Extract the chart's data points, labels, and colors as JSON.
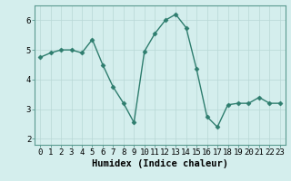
{
  "x": [
    0,
    1,
    2,
    3,
    4,
    5,
    6,
    7,
    8,
    9,
    10,
    11,
    12,
    13,
    14,
    15,
    16,
    17,
    18,
    19,
    20,
    21,
    22,
    23
  ],
  "y": [
    4.75,
    4.9,
    5.0,
    5.0,
    4.9,
    5.35,
    4.5,
    3.75,
    3.2,
    2.55,
    4.95,
    5.55,
    6.0,
    6.2,
    5.75,
    4.35,
    2.75,
    2.4,
    3.15,
    3.2,
    3.2,
    3.4,
    3.2,
    3.2
  ],
  "line_color": "#2e7d6e",
  "marker": "D",
  "marker_size": 2.5,
  "bg_color": "#d4eeed",
  "grid_color": "#b8d8d5",
  "xlabel": "Humidex (Indice chaleur)",
  "ylim": [
    1.8,
    6.5
  ],
  "xlim": [
    -0.5,
    23.5
  ],
  "yticks": [
    2,
    3,
    4,
    5,
    6
  ],
  "xticks": [
    0,
    1,
    2,
    3,
    4,
    5,
    6,
    7,
    8,
    9,
    10,
    11,
    12,
    13,
    14,
    15,
    16,
    17,
    18,
    19,
    20,
    21,
    22,
    23
  ],
  "xlabel_fontsize": 7.5,
  "tick_fontsize": 6.5,
  "linewidth": 1.0
}
